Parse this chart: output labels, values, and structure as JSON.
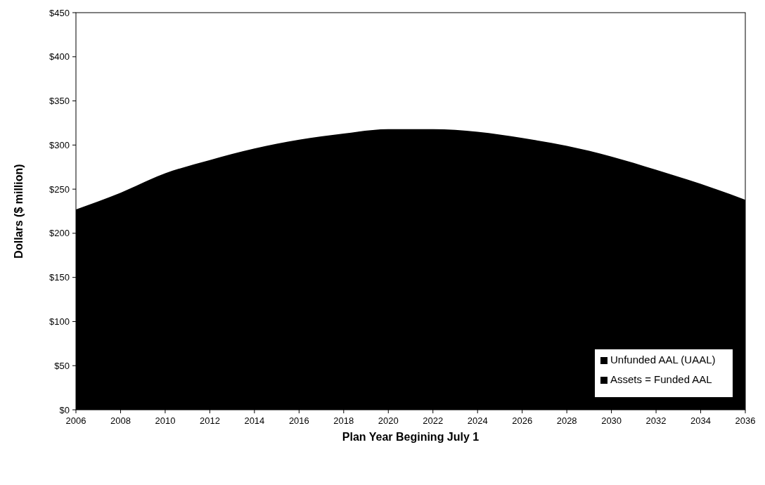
{
  "chart_data": {
    "type": "area",
    "xlabel": "Plan Year Begining July 1",
    "ylabel": "Dollars ($ million)",
    "x": [
      2006,
      2008,
      2010,
      2012,
      2014,
      2016,
      2018,
      2020,
      2022,
      2024,
      2026,
      2028,
      2030,
      2032,
      2034,
      2036
    ],
    "series": [
      {
        "name": "Assets = Funded AAL",
        "color": "#000000",
        "values": [
          227,
          246,
          268,
          283,
          296,
          306,
          313,
          318,
          318,
          315,
          308,
          299,
          287,
          272,
          256,
          238
        ]
      },
      {
        "name": "Unfunded AAL (UAAL)",
        "color": "#000000",
        "values": [
          null,
          null,
          null,
          null,
          null,
          null,
          null,
          null,
          null,
          null,
          null,
          null,
          null,
          null,
          null,
          null
        ]
      }
    ],
    "xlim": [
      2006,
      2036
    ],
    "xticks": [
      2006,
      2008,
      2010,
      2012,
      2014,
      2016,
      2018,
      2020,
      2022,
      2024,
      2026,
      2028,
      2030,
      2032,
      2034,
      2036
    ],
    "ylim": [
      0,
      450
    ],
    "yticks": [
      {
        "value": 0,
        "label": "$0"
      },
      {
        "value": 50,
        "label": "$50"
      },
      {
        "value": 100,
        "label": "$100"
      },
      {
        "value": 150,
        "label": "$150"
      },
      {
        "value": 200,
        "label": "$200"
      },
      {
        "value": 250,
        "label": "$250"
      },
      {
        "value": 300,
        "label": "$300"
      },
      {
        "value": 350,
        "label": "$350"
      },
      {
        "value": 400,
        "label": "$400"
      },
      {
        "value": 450,
        "label": "$450"
      }
    ],
    "grid": false,
    "legend": "bottom right"
  }
}
